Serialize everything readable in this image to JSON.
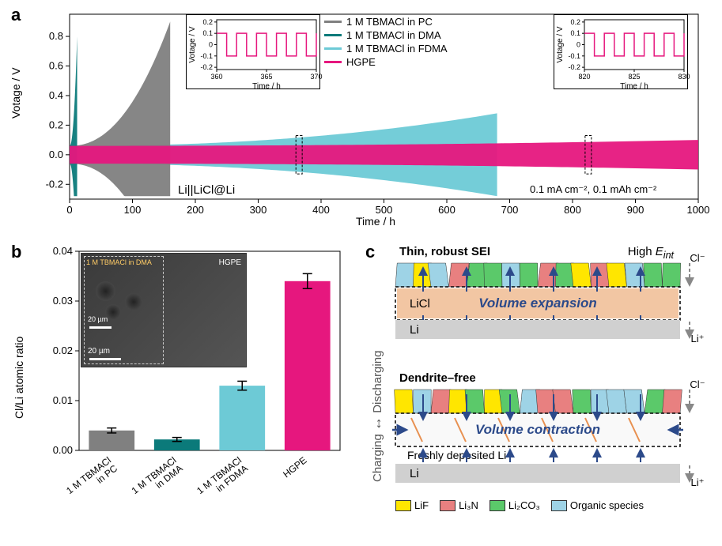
{
  "panelA": {
    "label": "a",
    "yLabel": "Votage / V",
    "xLabel": "Time / h",
    "yTicks": [
      "-0.2",
      "0.0",
      "0.2",
      "0.4",
      "0.6",
      "0.8"
    ],
    "xTicks": [
      "0",
      "100",
      "200",
      "300",
      "400",
      "500",
      "600",
      "700",
      "800",
      "900",
      "1000"
    ],
    "ylim": [
      -0.3,
      0.95
    ],
    "xlim": [
      0,
      1000
    ],
    "legend": [
      {
        "label": "1 M TBMACl in PC",
        "color": "#808080"
      },
      {
        "label": "1 M TBMACl in DMA",
        "color": "#0b7a7a"
      },
      {
        "label": "1 M TBMACl in FDMA",
        "color": "#6dcad6"
      },
      {
        "label": "HGPE",
        "color": "#e6177e"
      }
    ],
    "series": {
      "PC": {
        "color": "#808080",
        "tStart": 0,
        "tEnd": 160,
        "envStart": 0.06,
        "envEnd": 0.9
      },
      "DMA": {
        "color": "#0b7a7a",
        "tStart": 0,
        "tEnd": 12,
        "envStart": 0.06,
        "envEnd": 0.8
      },
      "FDMA": {
        "color": "#6dcad6",
        "tStart": 0,
        "tEnd": 680,
        "envStart": 0.06,
        "envEnd": 0.28
      },
      "HGPE": {
        "color": "#e6177e",
        "tStart": 0,
        "tEnd": 1000,
        "envStart": 0.06,
        "envEnd": 0.1
      }
    },
    "annotation1": "Li||LiCl@Li",
    "annotation2": "0.1 mA cm⁻², 0.1 mAh cm⁻²",
    "inset1": {
      "xLabel": "Time / h",
      "yLabel": "Votage / V",
      "xTicks": [
        "360",
        "365",
        "370"
      ],
      "yTicks": [
        "-0.2",
        "-0.1",
        "0",
        "0.1",
        "0.2"
      ],
      "color": "#e6177e",
      "amp": 0.1,
      "period": 2
    },
    "inset2": {
      "xLabel": "Time / h",
      "yLabel": "Votage / V",
      "xTicks": [
        "820",
        "825",
        "830"
      ],
      "yTicks": [
        "-0.2",
        "-0.1",
        "0",
        "0.1",
        "0.2"
      ],
      "color": "#e6177e",
      "amp": 0.1,
      "period": 2
    },
    "dashBoxes": [
      {
        "x": 360,
        "w": 10
      },
      {
        "x": 820,
        "w": 10
      }
    ]
  },
  "panelB": {
    "label": "b",
    "yLabel": "Cl/Li atomic ratio",
    "yTicks": [
      "0.00",
      "0.01",
      "0.02",
      "0.03",
      "0.04"
    ],
    "ylim": [
      0,
      0.04
    ],
    "bars": [
      {
        "label": "1 M TBMACl in PC",
        "value": 0.004,
        "err": 0.0005,
        "color": "#808080"
      },
      {
        "label": "1 M TBMACl in DMA",
        "value": 0.0022,
        "err": 0.0004,
        "color": "#0b7a7a"
      },
      {
        "label": "1 M TBMACl in FDMA",
        "value": 0.013,
        "err": 0.0009,
        "color": "#6dcad6"
      },
      {
        "label": "HGPE",
        "value": 0.034,
        "err": 0.0015,
        "color": "#e6177e"
      }
    ],
    "bar_width": 0.7,
    "insetLabels": {
      "left": "1 M TBMACl in DMA",
      "right": "HGPE",
      "scale1": "20 µm",
      "scale2": "20 µm"
    }
  },
  "panelC": {
    "label": "c",
    "top": {
      "title": "Thin, robust SEI",
      "right": "High Eᵢₙₜ",
      "bandText": "Volume expansion",
      "bandLabel": "LiCl",
      "bottomLabel": "Li",
      "rightIon1": "Cl⁻",
      "rightIon2": "Li⁺"
    },
    "bottom": {
      "title": "Dendrite–free",
      "bandText": "Volume contraction",
      "depositLabel": "Freshly deposited Li",
      "bottomLabel": "Li",
      "rightIon1": "Cl⁻",
      "rightIon2": "Li⁺"
    },
    "sideLabel": "Charging ←→ Discharging",
    "legend": [
      {
        "label": "LiF",
        "color": "#ffe600"
      },
      {
        "label": "Li₃N",
        "color": "#e88080"
      },
      {
        "label": "Li₂CO₃",
        "color": "#5bc96a"
      },
      {
        "label": "Organic species",
        "color": "#9ed3e6"
      }
    ],
    "colors": {
      "liclBand": "#f2c6a3",
      "liBand": "#d0d0d0",
      "arrow": "#2c4a8a",
      "text": "#2c4a8a"
    }
  }
}
